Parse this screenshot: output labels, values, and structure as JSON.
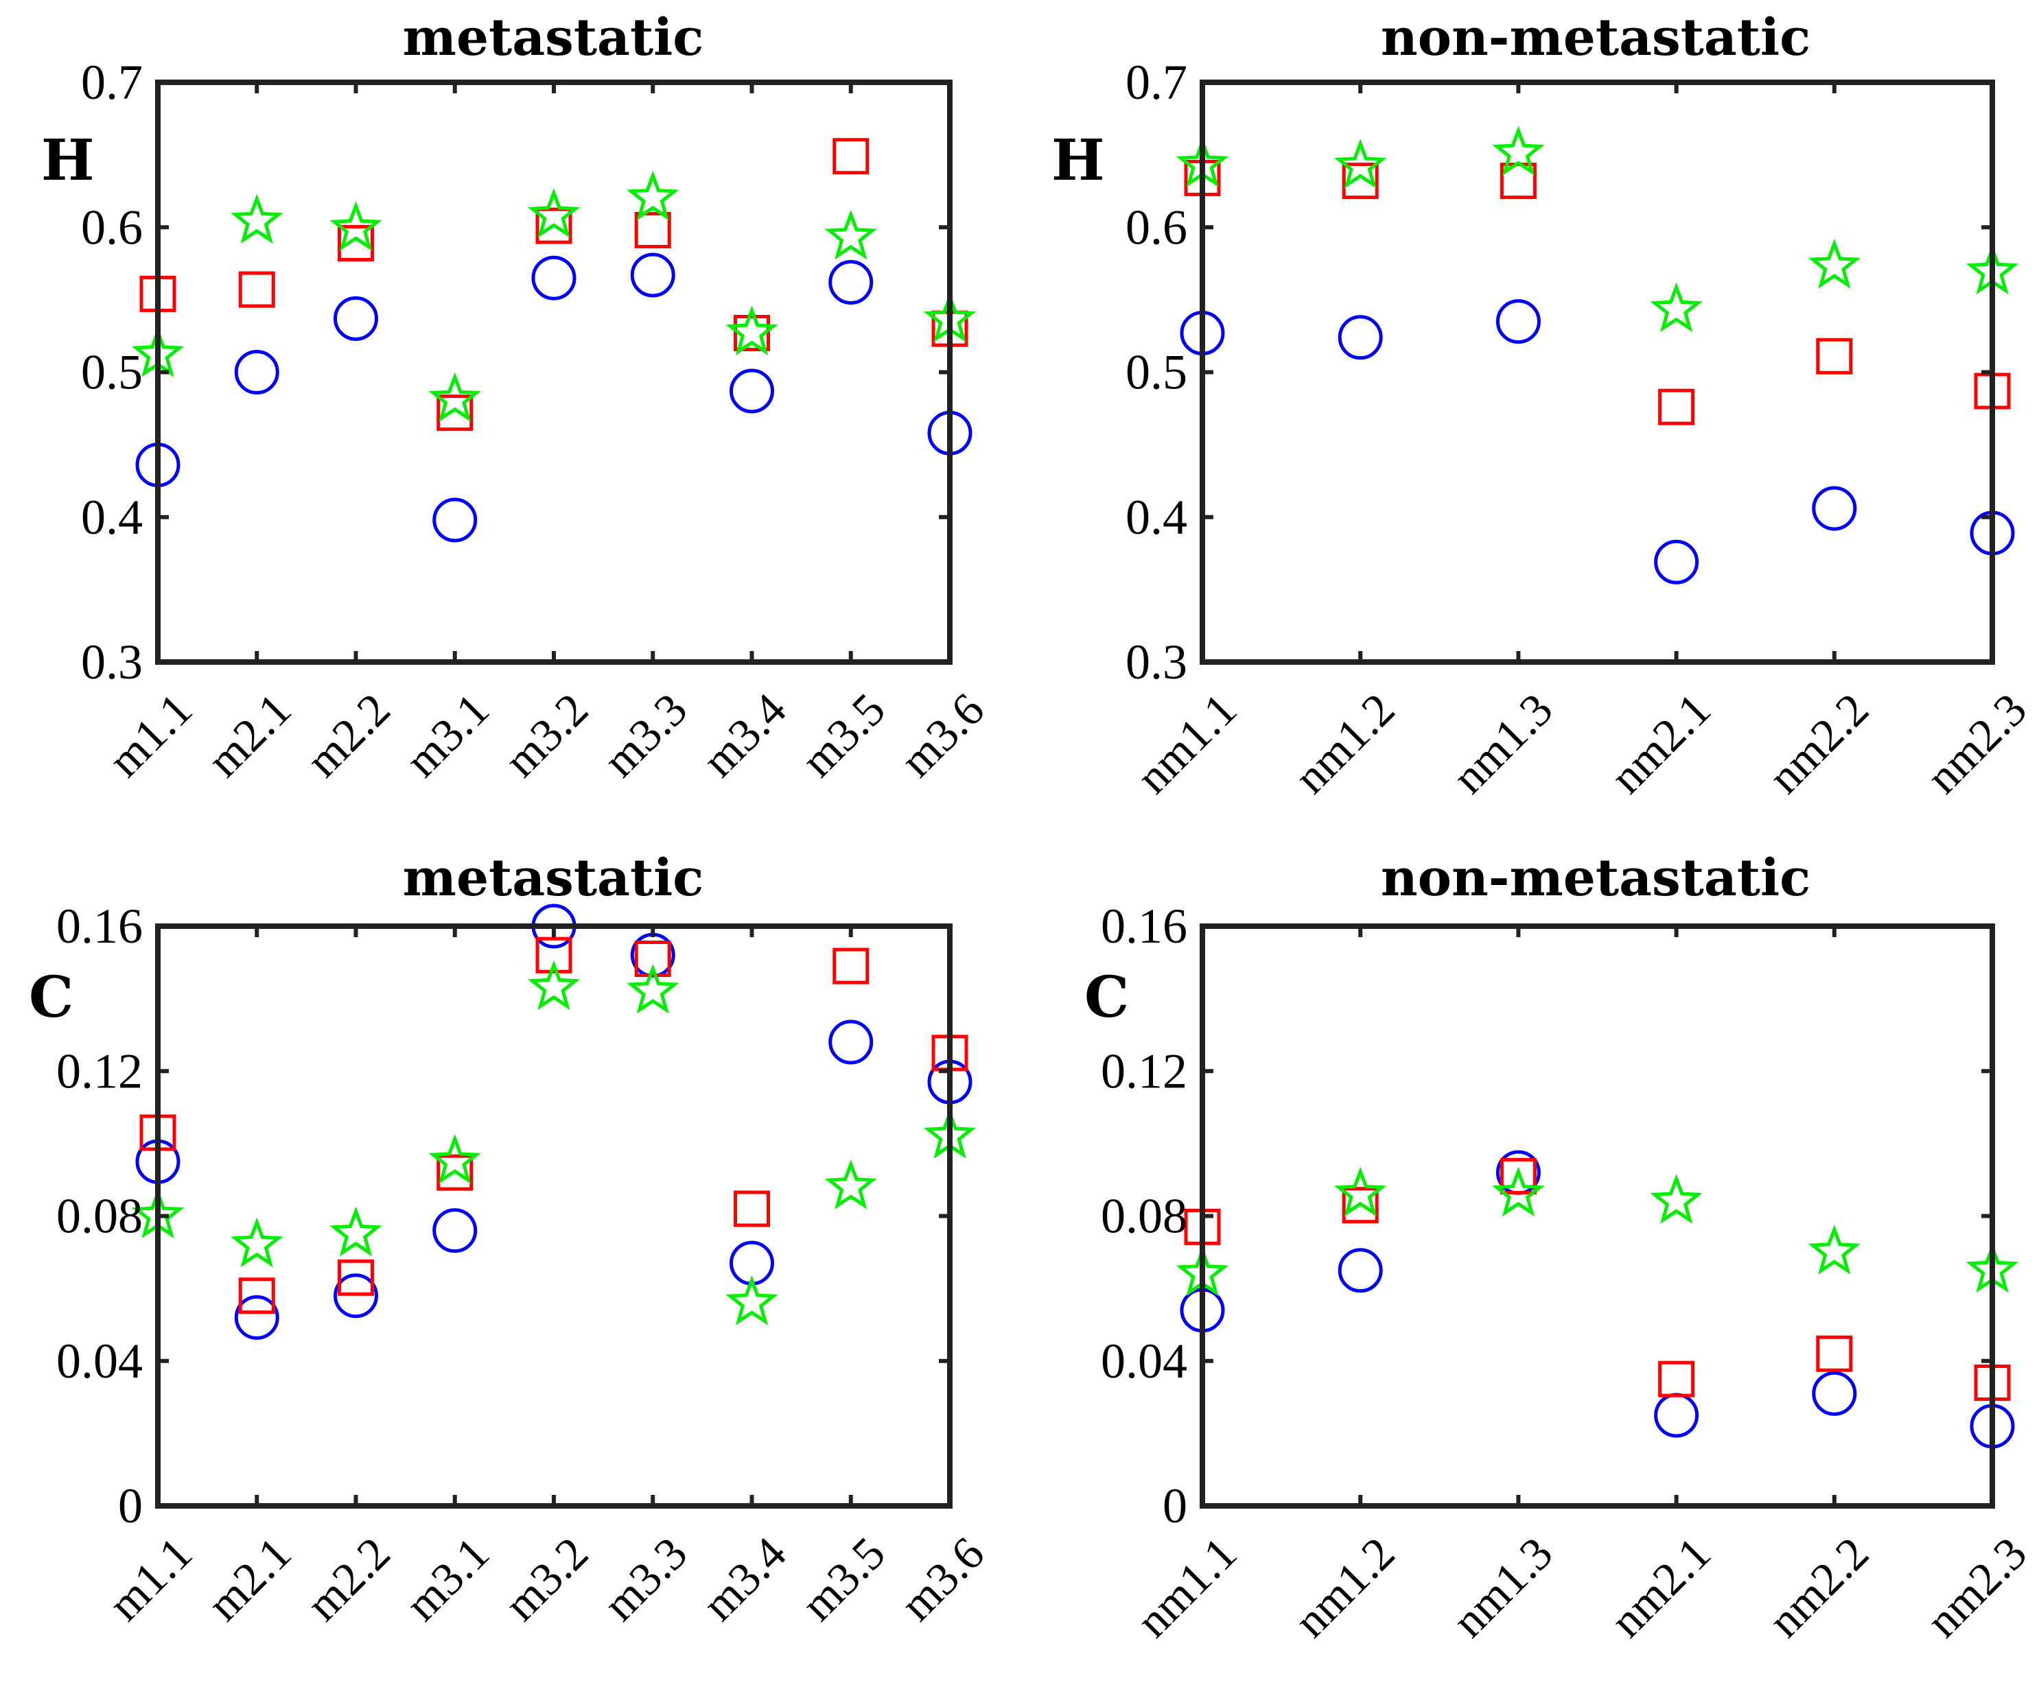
{
  "chart_data": [
    {
      "type": "scatter",
      "title": "metastatic",
      "ylabel": "H",
      "categories": [
        "m1.1",
        "m2.1",
        "m2.2",
        "m3.1",
        "m3.2",
        "m3.3",
        "m3.4",
        "m3.5",
        "m3.6"
      ],
      "ylim": [
        0.3,
        0.7
      ],
      "yticks": [
        0.3,
        0.4,
        0.5,
        0.6,
        0.7
      ],
      "ytick_labels": [
        "0.3",
        "0.4",
        "0.5",
        "0.6",
        "0.7"
      ],
      "series": [
        {
          "name": "circle",
          "marker": "circle",
          "color": "#0000ff",
          "values": [
            0.436,
            0.5,
            0.537,
            0.398,
            0.565,
            0.567,
            0.487,
            0.562,
            0.458
          ]
        },
        {
          "name": "square",
          "marker": "square",
          "color": "#ff0000",
          "values": [
            0.554,
            0.557,
            0.589,
            0.472,
            0.601,
            0.598,
            0.527,
            0.649,
            0.53
          ]
        },
        {
          "name": "star",
          "marker": "star",
          "color": "#00ee00",
          "values": [
            0.512,
            0.604,
            0.599,
            0.481,
            0.608,
            0.62,
            0.527,
            0.593,
            0.536
          ]
        }
      ]
    },
    {
      "type": "scatter",
      "title": "non-metastatic",
      "ylabel": "H",
      "categories": [
        "nm1.1",
        "nm1.2",
        "nm1.3",
        "nm2.1",
        "nm2.2",
        "nm2.3"
      ],
      "ylim": [
        0.3,
        0.7
      ],
      "yticks": [
        0.3,
        0.4,
        0.5,
        0.6,
        0.7
      ],
      "ytick_labels": [
        "0.3",
        "0.4",
        "0.5",
        "0.6",
        "0.7"
      ],
      "series": [
        {
          "name": "circle",
          "marker": "circle",
          "color": "#0000ff",
          "values": [
            0.527,
            0.524,
            0.535,
            0.369,
            0.406,
            0.389
          ]
        },
        {
          "name": "square",
          "marker": "square",
          "color": "#ff0000",
          "values": [
            0.634,
            0.632,
            0.632,
            0.476,
            0.511,
            0.487
          ]
        },
        {
          "name": "star",
          "marker": "star",
          "color": "#00ee00",
          "values": [
            0.643,
            0.642,
            0.651,
            0.543,
            0.573,
            0.569
          ]
        }
      ]
    },
    {
      "type": "scatter",
      "title": "metastatic",
      "ylabel": "C",
      "categories": [
        "m1.1",
        "m2.1",
        "m2.2",
        "m3.1",
        "m3.2",
        "m3.3",
        "m3.4",
        "m3.5",
        "m3.6"
      ],
      "ylim": [
        0,
        0.16
      ],
      "yticks": [
        0,
        0.04,
        0.08,
        0.12,
        0.16
      ],
      "ytick_labels": [
        "0",
        "0.04",
        "0.08",
        "0.12",
        "0.16"
      ],
      "series": [
        {
          "name": "circle",
          "marker": "circle",
          "color": "#0000ff",
          "values": [
            0.095,
            0.052,
            0.058,
            0.076,
            0.16,
            0.152,
            0.067,
            0.128,
            0.117
          ]
        },
        {
          "name": "square",
          "marker": "square",
          "color": "#ff0000",
          "values": [
            0.103,
            0.058,
            0.063,
            0.092,
            0.152,
            0.151,
            0.082,
            0.149,
            0.125
          ]
        },
        {
          "name": "star",
          "marker": "star",
          "color": "#00ee00",
          "values": [
            0.08,
            0.072,
            0.075,
            0.095,
            0.143,
            0.142,
            0.056,
            0.088,
            0.102
          ]
        }
      ]
    },
    {
      "type": "scatter",
      "title": "non-metastatic",
      "ylabel": "C",
      "categories": [
        "nm1.1",
        "nm1.2",
        "nm1.3",
        "nm2.1",
        "nm2.2",
        "nm2.3"
      ],
      "ylim": [
        0,
        0.16
      ],
      "yticks": [
        0,
        0.04,
        0.08,
        0.12,
        0.16
      ],
      "ytick_labels": [
        "0",
        "0.04",
        "0.08",
        "0.12",
        "0.16"
      ],
      "series": [
        {
          "name": "circle",
          "marker": "circle",
          "color": "#0000ff",
          "values": [
            0.054,
            0.065,
            0.092,
            0.025,
            0.031,
            0.022
          ]
        },
        {
          "name": "square",
          "marker": "square",
          "color": "#ff0000",
          "values": [
            0.077,
            0.083,
            0.091,
            0.035,
            0.042,
            0.034
          ]
        },
        {
          "name": "star",
          "marker": "star",
          "color": "#00ee00",
          "values": [
            0.064,
            0.086,
            0.086,
            0.084,
            0.07,
            0.065
          ]
        }
      ]
    }
  ]
}
